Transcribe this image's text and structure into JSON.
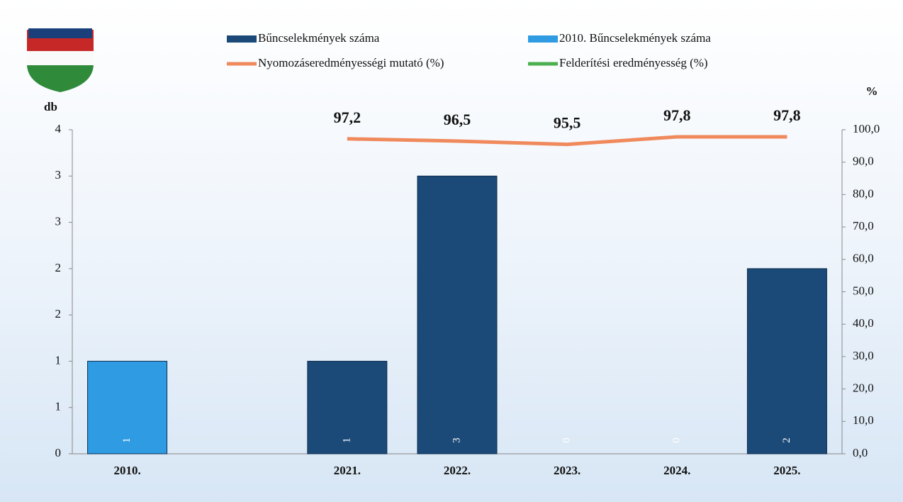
{
  "chart_data": {
    "type": "bar",
    "y_label": "db",
    "y2_label": "%",
    "categories": [
      "2010.",
      null,
      "2021.",
      "2022.",
      "2023.",
      "2024.",
      "2025."
    ],
    "series": [
      {
        "name": "Bűncselekmények száma",
        "color": "#1b4a78",
        "type": "bar",
        "values": [
          null,
          null,
          1,
          3,
          0,
          0,
          2
        ]
      },
      {
        "name": "2010. Bűncselekmények száma",
        "color": "#2f9be3",
        "type": "bar",
        "values": [
          1,
          null,
          null,
          null,
          null,
          null,
          null
        ]
      },
      {
        "name": "Nyomozáseredményességi mutató (%)",
        "color": "#f08a5d",
        "type": "line",
        "axis": "y2",
        "values": [
          null,
          null,
          97.2,
          96.5,
          95.5,
          97.8,
          97.8
        ],
        "value_labels": [
          null,
          null,
          "97,2",
          "96,5",
          "95,5",
          "97,8",
          "97,8"
        ]
      },
      {
        "name": "Felderítési eredményesség (%)",
        "color": "#4caf50",
        "type": "line",
        "axis": "y2",
        "values": [
          null,
          null,
          null,
          null,
          null,
          null,
          null
        ]
      }
    ],
    "ylim": [
      0,
      3.5
    ],
    "yticks": [
      0,
      {
        "value": 0.5,
        "label": "1"
      },
      1,
      {
        "value": 1.5,
        "label": "2"
      },
      2,
      {
        "value": 2.5,
        "label": "3"
      },
      3,
      {
        "value": 3.5,
        "label": "4"
      }
    ],
    "y2lim": [
      0,
      100
    ],
    "y2ticks": [
      {
        "value": 0,
        "label": "0,0"
      },
      {
        "value": 10,
        "label": "10,0"
      },
      {
        "value": 20,
        "label": "20,0"
      },
      {
        "value": 30,
        "label": "30,0"
      },
      {
        "value": 40,
        "label": "40,0"
      },
      {
        "value": 50,
        "label": "50,0"
      },
      {
        "value": 60,
        "label": "60,0"
      },
      {
        "value": 70,
        "label": "70,0"
      },
      {
        "value": 80,
        "label": "80,0"
      },
      {
        "value": 90,
        "label": "90,0"
      },
      {
        "value": 100,
        "label": "100,0"
      }
    ]
  }
}
